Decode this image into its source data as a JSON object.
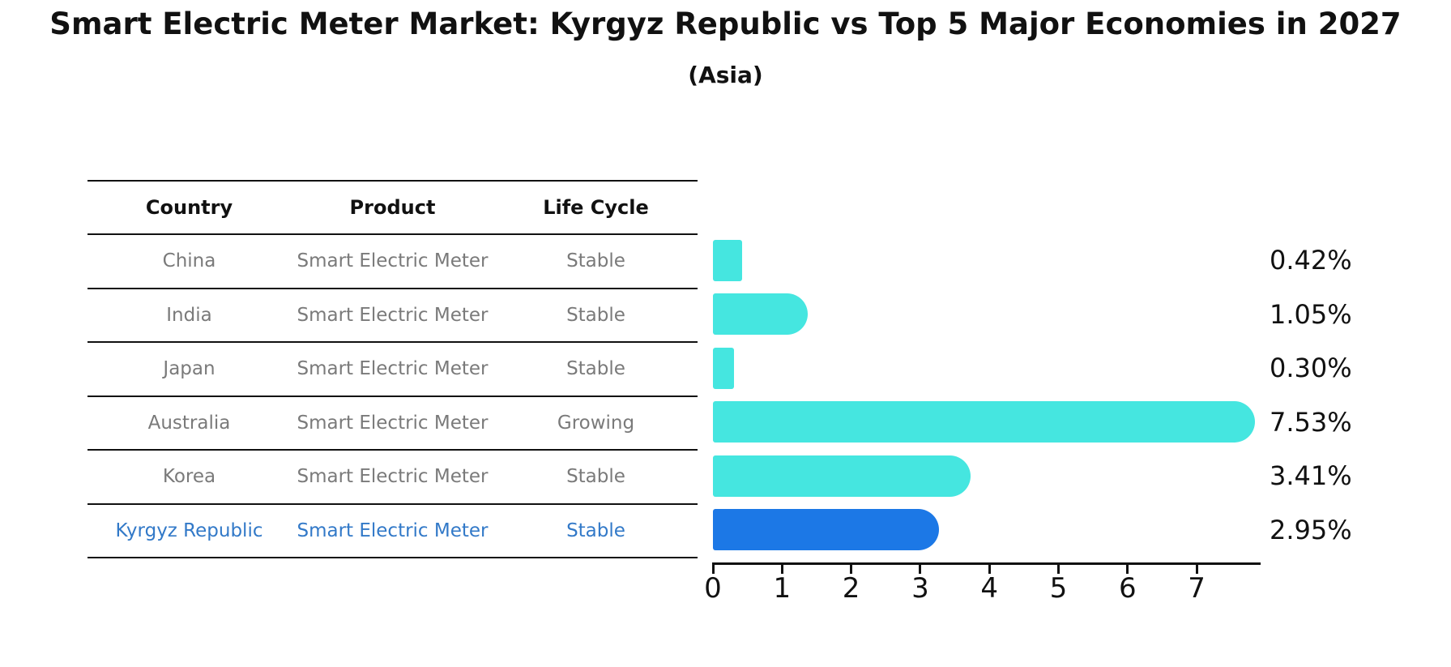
{
  "title": "Smart Electric Meter Market: Kyrgyz Republic vs Top 5 Major Economies in 2027",
  "subtitle": "(Asia)",
  "table": {
    "headers": [
      "Country",
      "Product",
      "Life Cycle"
    ],
    "rows": [
      {
        "country": "China",
        "product": "Smart Electric Meter",
        "life_cycle": "Stable",
        "highlight": false
      },
      {
        "country": "India",
        "product": "Smart Electric Meter",
        "life_cycle": "Stable",
        "highlight": false
      },
      {
        "country": "Japan",
        "product": "Smart Electric Meter",
        "life_cycle": "Stable",
        "highlight": false
      },
      {
        "country": "Australia",
        "product": "Smart Electric Meter",
        "life_cycle": "Growing",
        "highlight": false
      },
      {
        "country": "Korea",
        "product": "Smart Electric Meter",
        "life_cycle": "Stable",
        "highlight": false
      },
      {
        "country": "Kyrgyz Republic",
        "product": "Smart Electric Meter",
        "life_cycle": "Stable",
        "highlight": true
      }
    ]
  },
  "chart_data": {
    "type": "bar",
    "orientation": "horizontal",
    "categories": [
      "China",
      "India",
      "Japan",
      "Australia",
      "Korea",
      "Kyrgyz Republic"
    ],
    "values": [
      0.42,
      1.05,
      0.3,
      7.53,
      3.41,
      2.95
    ],
    "value_labels": [
      "0.42%",
      "1.05%",
      "0.30%",
      "7.53%",
      "3.41%",
      "2.95%"
    ],
    "x_ticks": [
      "0",
      "1",
      "2",
      "3",
      "4",
      "5",
      "6",
      "7"
    ],
    "xlim": [
      0,
      7.93
    ],
    "grid": false,
    "legend": false,
    "bar_color": "#45e6e0",
    "highlight_bar_color": "#1c78e6",
    "highlight_index": 5,
    "highlight_text_color": "#3279c8",
    "axis_color": "#111111"
  }
}
